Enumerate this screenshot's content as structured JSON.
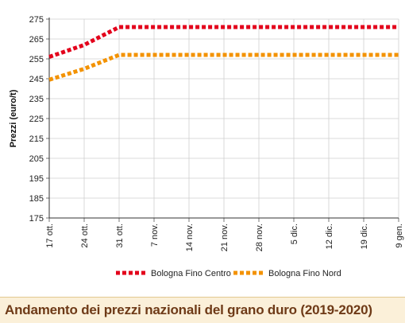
{
  "chart_data": {
    "type": "line",
    "title": "Andamento dei prezzi nazionali del grano duro (2019-2020)",
    "ylabel": "Prezzi (euro/t)",
    "xlabel": "",
    "ylim": [
      175,
      275
    ],
    "yticks": [
      175,
      185,
      195,
      205,
      215,
      225,
      235,
      245,
      255,
      265,
      275
    ],
    "categories": [
      "17 ott.",
      "24 ott.",
      "31 ott.",
      "7 nov.",
      "14 nov.",
      "21 nov.",
      "28 nov.",
      "5 dic.",
      "12 dic.",
      "19 dic.",
      "9 gen."
    ],
    "series": [
      {
        "name": "Bologna Fino Centro",
        "color": "#e3001b",
        "values": [
          256,
          262,
          271,
          271,
          271,
          271,
          271,
          271,
          271,
          271,
          271
        ]
      },
      {
        "name": "Bologna Fino Nord",
        "color": "#f39200",
        "values": [
          244.5,
          250,
          257,
          257,
          257,
          257,
          257,
          257,
          257,
          257,
          257
        ]
      }
    ],
    "grid": true,
    "legend": "bottom"
  }
}
